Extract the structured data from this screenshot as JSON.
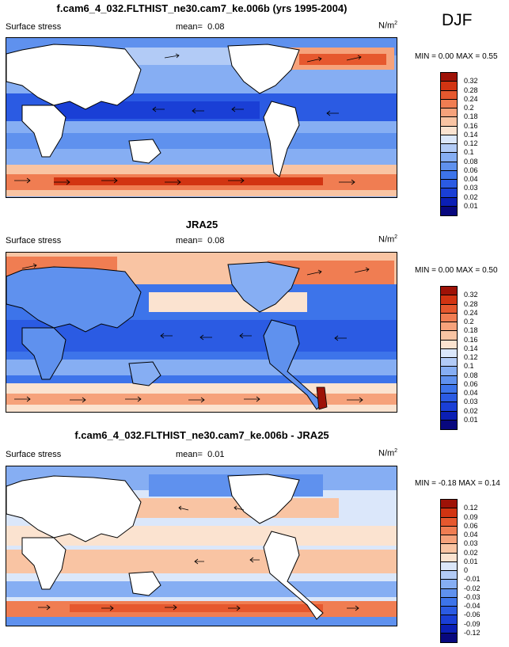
{
  "season": "DJF",
  "palette": {
    "abs": [
      "#08087e",
      "#0b1fb5",
      "#1a3fd6",
      "#2b5be3",
      "#3d74ea",
      "#5f91ee",
      "#86aef3",
      "#b2cbf6",
      "#dbe7fa",
      "#fbe3d0",
      "#f9c4a3",
      "#f6a27b",
      "#f07d52",
      "#e6582e",
      "#d23412",
      "#9e1207"
    ],
    "diff": [
      "#08087e",
      "#0b1fb5",
      "#1a3fd6",
      "#2b5be3",
      "#3d74ea",
      "#5f91ee",
      "#86aef3",
      "#b2cbf6",
      "#dbe7fa",
      "#fbe3d0",
      "#f9c4a3",
      "#f6a27b",
      "#f07d52",
      "#e6582e",
      "#d23412",
      "#9e1207"
    ]
  },
  "panels": [
    {
      "title": "f.cam6_4_032.FLTHIST_ne30.cam7_ke.006b (yrs 1995-2004)",
      "variable": "Surface stress",
      "mean_label": "mean=",
      "mean": "0.08",
      "units": "N/m",
      "units_sup": "2",
      "min_label": "MIN =",
      "min": "0.00",
      "max_label": "MAX =",
      "max": "0.55",
      "colorbar_labels": [
        "0.32",
        "0.28",
        "0.24",
        "0.2",
        "0.18",
        "0.16",
        "0.14",
        "0.12",
        "0.1",
        "0.08",
        "0.06",
        "0.04",
        "0.03",
        "0.02",
        "0.01"
      ]
    },
    {
      "title": "JRA25",
      "variable": "Surface stress",
      "mean_label": "mean=",
      "mean": "0.08",
      "units": "N/m",
      "units_sup": "2",
      "min_label": "MIN =",
      "min": "0.00",
      "max_label": "MAX =",
      "max": "0.50",
      "colorbar_labels": [
        "0.32",
        "0.28",
        "0.24",
        "0.2",
        "0.18",
        "0.16",
        "0.14",
        "0.12",
        "0.1",
        "0.08",
        "0.06",
        "0.04",
        "0.03",
        "0.02",
        "0.01"
      ]
    },
    {
      "title": "f.cam6_4_032.FLTHIST_ne30.cam7_ke.006b - JRA25",
      "variable": "Surface stress",
      "mean_label": "mean=",
      "mean": "0.01",
      "units": "N/m",
      "units_sup": "2",
      "min_label": "MIN =",
      "min": "-0.18",
      "max_label": "MAX =",
      "max": "0.14",
      "colorbar_labels": [
        "0.12",
        "0.09",
        "0.06",
        "0.04",
        "0.03",
        "0.02",
        "0.01",
        "0",
        "-0.01",
        "-0.02",
        "-0.03",
        "-0.04",
        "-0.06",
        "-0.09",
        "-0.12"
      ]
    }
  ]
}
